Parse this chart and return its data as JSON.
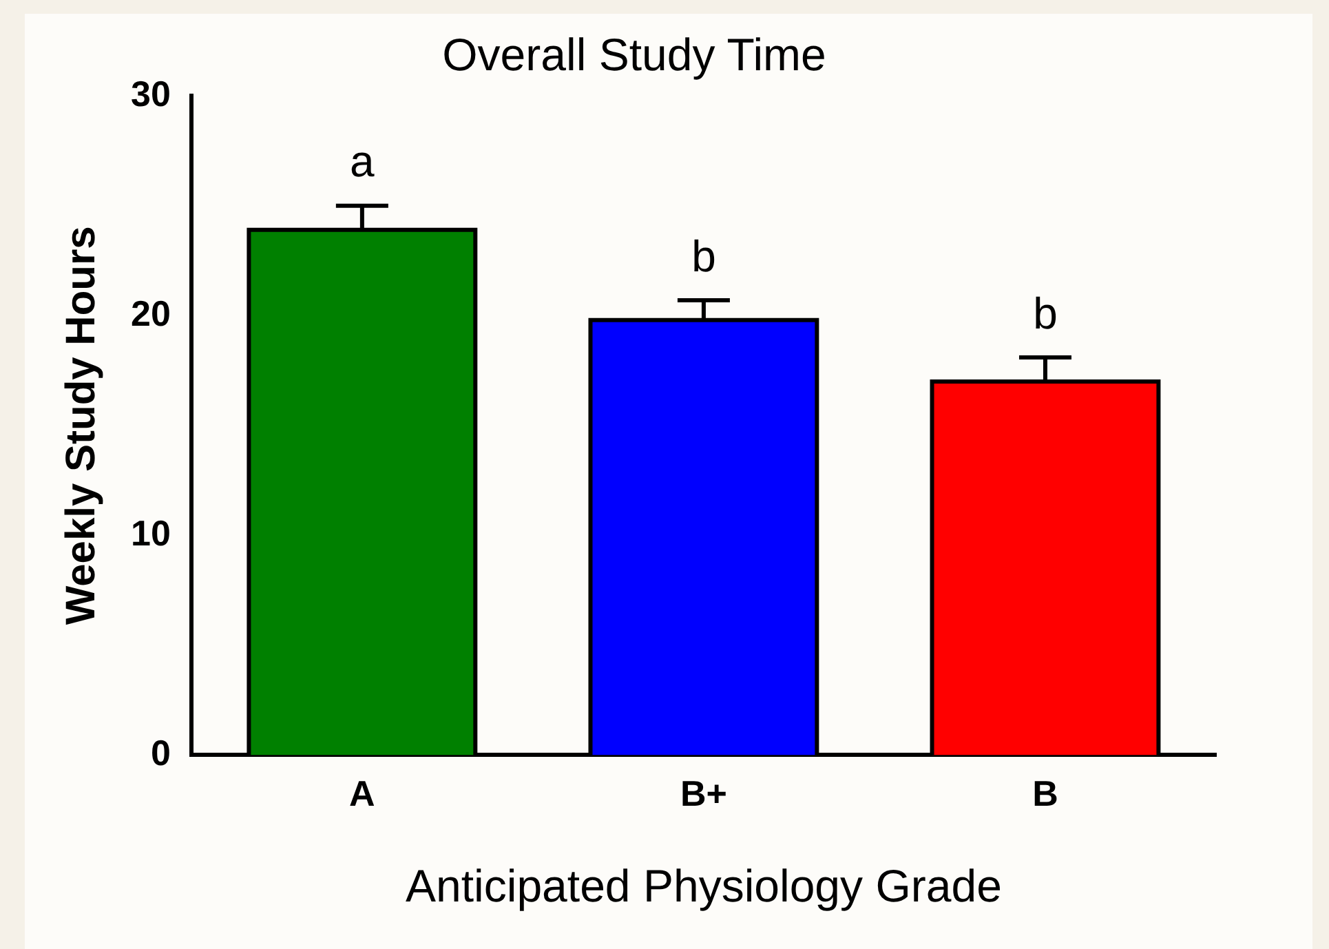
{
  "chart_data": {
    "type": "bar",
    "title": "Overall Study Time",
    "xlabel": "Anticipated Physiology Grade",
    "ylabel": "Weekly Study Hours",
    "categories": [
      "A",
      "B+",
      "B"
    ],
    "values": [
      23.9,
      19.8,
      17.0
    ],
    "errors": [
      1.1,
      0.9,
      1.1
    ],
    "colors": [
      "#008000",
      "#0000ff",
      "#ff0000"
    ],
    "ylim": [
      0,
      30
    ],
    "yticks": [
      0,
      10,
      20,
      30
    ],
    "grid": false,
    "legend": false,
    "annotations": [
      "a",
      "b",
      "b"
    ]
  }
}
